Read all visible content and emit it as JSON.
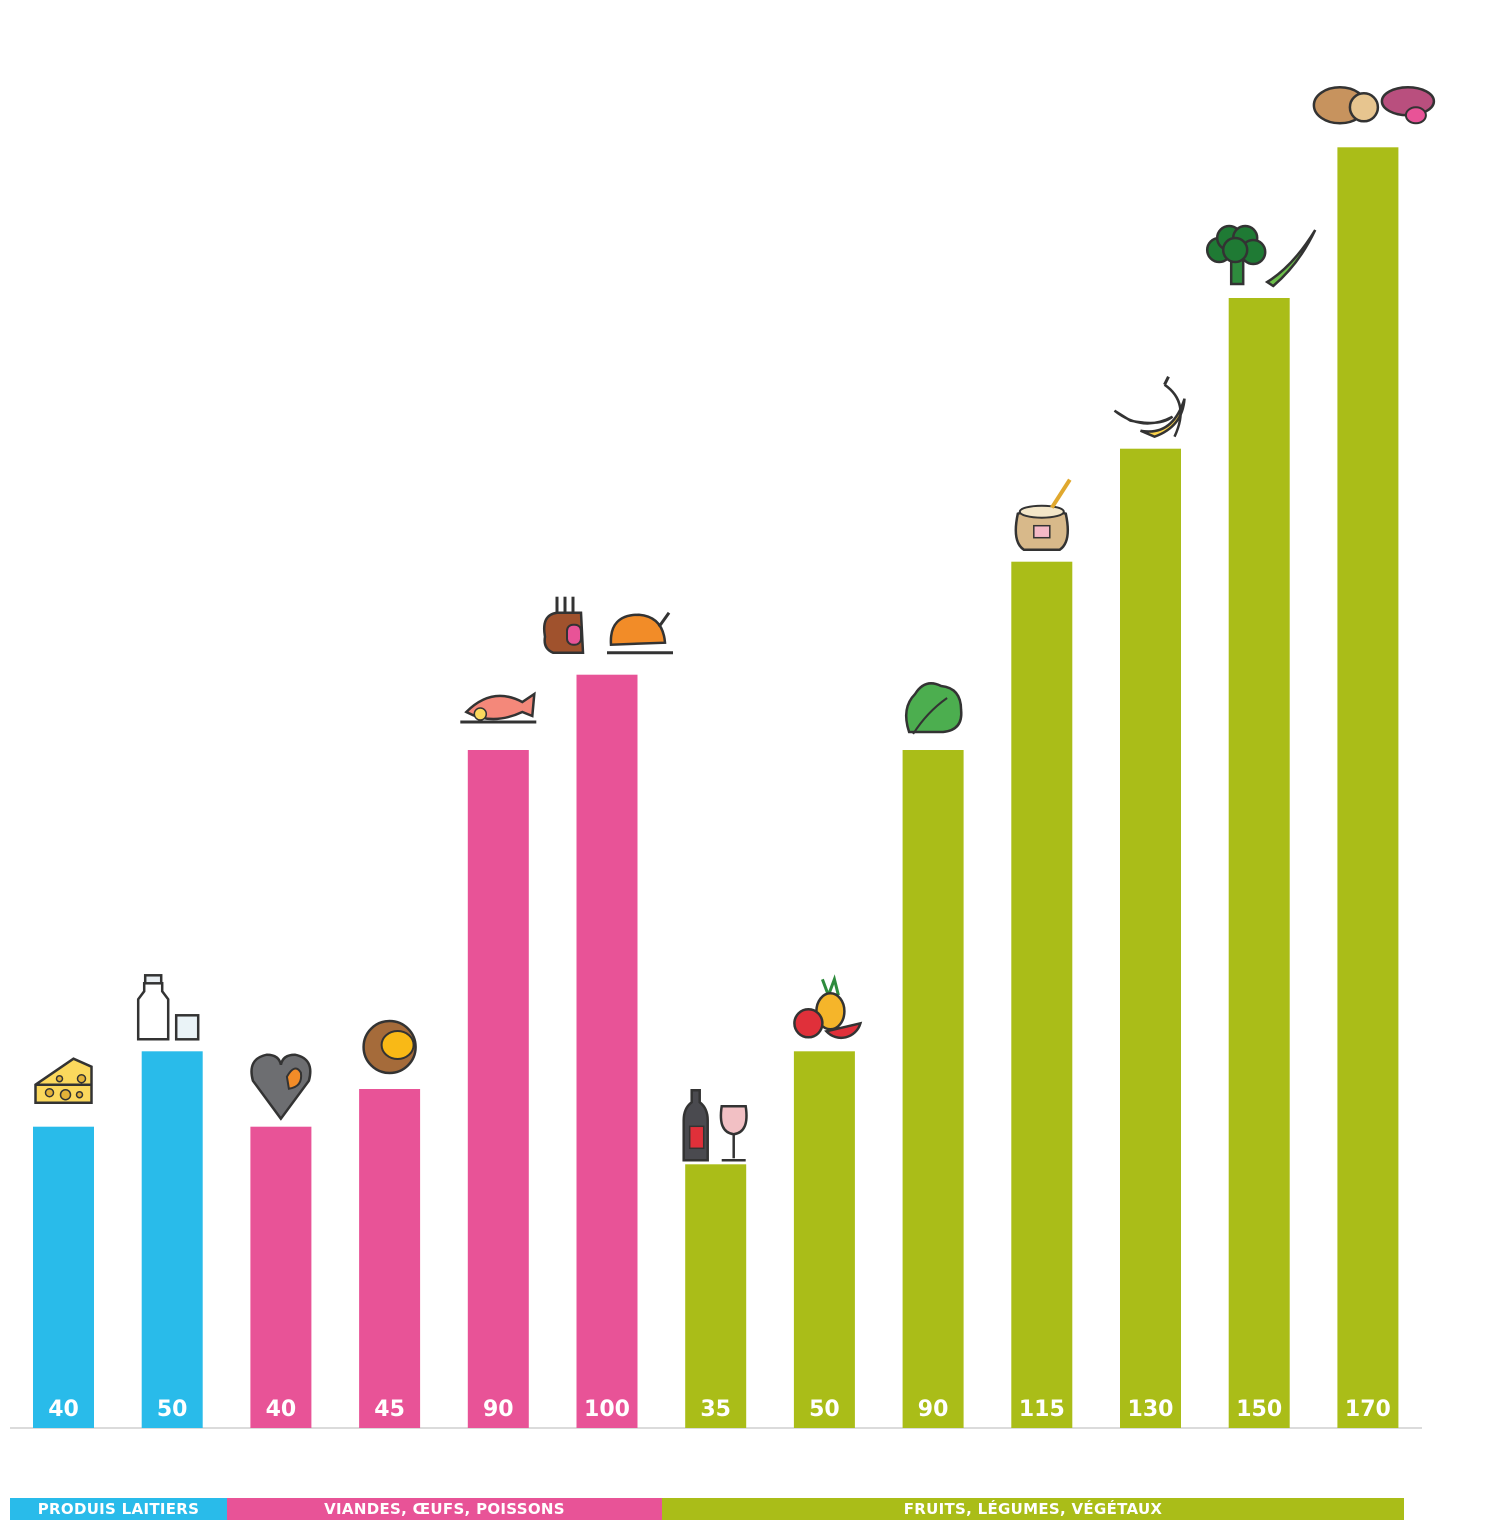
{
  "colors": {
    "dairy": "#29bbea",
    "meat": "#e85397",
    "plant": "#aabd18",
    "axis": "#cfcfcf"
  },
  "chart_data": {
    "type": "bar",
    "title": "",
    "xlabel": "",
    "ylabel": "",
    "ylim": [
      0,
      180
    ],
    "grid": false,
    "categories": [
      "cheese",
      "milk",
      "mussels",
      "egg",
      "fish",
      "meat-poultry",
      "wine",
      "fruits",
      "salad",
      "grain",
      "banana",
      "broccoli-beans",
      "potato-sweet-potato"
    ],
    "values": [
      40,
      50,
      40,
      45,
      90,
      100,
      35,
      50,
      90,
      115,
      130,
      150,
      170
    ],
    "value_labels": [
      "40",
      "50",
      "40",
      "45",
      "90",
      "100",
      "35",
      "50",
      "90",
      "115",
      "130",
      "150",
      "170"
    ],
    "groups": [
      "dairy",
      "dairy",
      "meat",
      "meat",
      "meat",
      "meat",
      "plant",
      "plant",
      "plant",
      "plant",
      "plant",
      "plant",
      "plant"
    ],
    "icons": [
      "cheese-icon",
      "milk-icon",
      "mussel-icon",
      "egg-icon",
      "fish-icon",
      "meat-poultry-icon",
      "wine-icon",
      "fruit-icon",
      "salad-icon",
      "grain-sack-icon",
      "banana-icon",
      "broccoli-bean-icon",
      "potato-icon"
    ]
  },
  "categories_legend": {
    "dairy": "PRODUIS LAITIERS",
    "meat": "VIANDES, ŒUFS, POISSONS",
    "plant": "FRUITS, LÉGUMES, VÉGÉTAUX"
  }
}
